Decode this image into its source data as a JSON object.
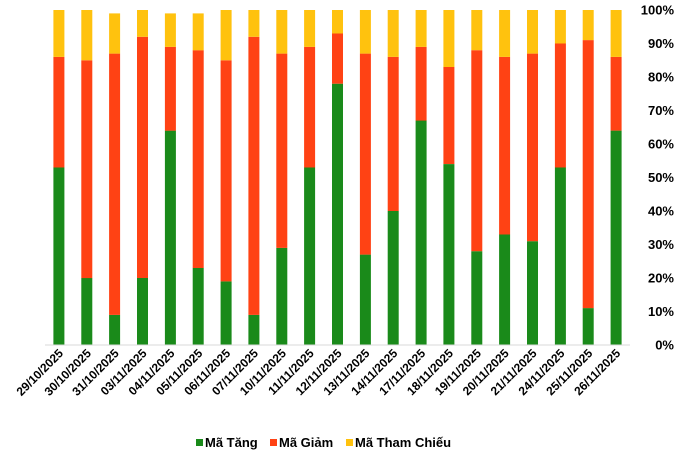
{
  "chart_data": {
    "type": "bar",
    "stacked": true,
    "categories": [
      "29/10/2025",
      "30/10/2025",
      "31/10/2025",
      "03/11/2025",
      "04/11/2025",
      "05/11/2025",
      "06/11/2025",
      "07/11/2025",
      "10/11/2025",
      "11/11/2025",
      "12/11/2025",
      "13/11/2025",
      "14/11/2025",
      "17/11/2025",
      "18/11/2025",
      "19/11/2025",
      "20/11/2025",
      "21/11/2025",
      "24/11/2025",
      "25/11/2025",
      "26/11/2025"
    ],
    "series": [
      {
        "name": "Mã Tăng",
        "color": "#1a8a1a",
        "values": [
          53,
          20,
          9,
          20,
          64,
          23,
          19,
          9,
          29,
          53,
          78,
          27,
          40,
          67,
          54,
          28,
          33,
          31,
          53,
          11,
          64
        ]
      },
      {
        "name": "Mã Giảm",
        "color": "#ff4214",
        "values": [
          33,
          65,
          78,
          72,
          25,
          65,
          66,
          83,
          58,
          36,
          15,
          60,
          46,
          22,
          29,
          60,
          53,
          56,
          37,
          80,
          22
        ]
      },
      {
        "name": "Mã Tham Chiếu",
        "color": "#ffc20e",
        "values": [
          14,
          15,
          12,
          8,
          10,
          11,
          15,
          8,
          13,
          11,
          7,
          13,
          14,
          11,
          17,
          12,
          14,
          13,
          10,
          9,
          14
        ]
      }
    ],
    "yticks": [
      "0%",
      "10%",
      "20%",
      "30%",
      "40%",
      "50%",
      "60%",
      "70%",
      "80%",
      "90%",
      "100%"
    ],
    "ylim": [
      0,
      100
    ],
    "grid": false,
    "legend": "bottom"
  }
}
